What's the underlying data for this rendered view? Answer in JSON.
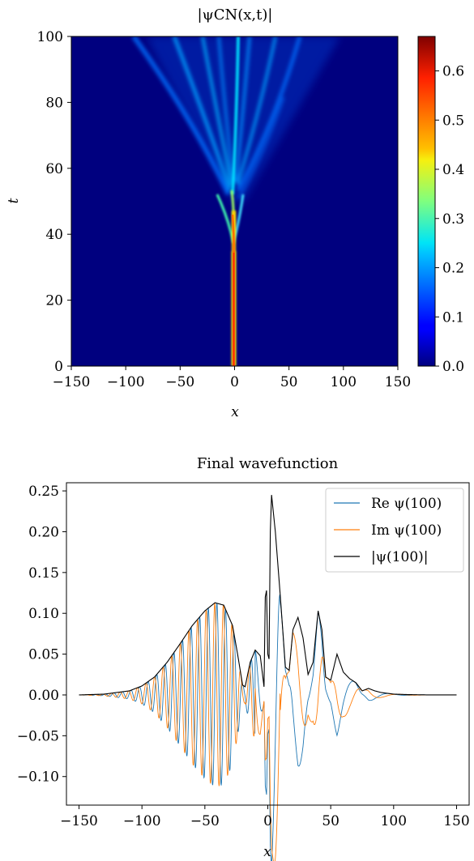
{
  "chart_data": [
    {
      "type": "heatmap",
      "title": "|ψCN(x,t)|",
      "xlabel": "x",
      "ylabel": "t",
      "xlim": [
        -150,
        150
      ],
      "ylim": [
        0,
        100
      ],
      "x_ticks": [
        -150,
        -100,
        -50,
        0,
        50,
        100,
        150
      ],
      "x_tick_labels": [
        "−150",
        "−100",
        "−50",
        "0",
        "50",
        "100",
        "150"
      ],
      "y_ticks": [
        0,
        20,
        40,
        60,
        80,
        100
      ],
      "y_tick_labels": [
        "0",
        "20",
        "40",
        "60",
        "80",
        "100"
      ],
      "colorbar": {
        "range": [
          0,
          0.67
        ],
        "ticks": [
          0.0,
          0.1,
          0.2,
          0.3,
          0.4,
          0.5,
          0.6
        ],
        "tick_labels": [
          "0.0",
          "0.1",
          "0.2",
          "0.3",
          "0.4",
          "0.5",
          "0.6"
        ],
        "colormap": "jet"
      },
      "features": [
        {
          "description_t_range": [
            0,
            40
          ],
          "x": 0,
          "peak_value": 0.67
        },
        {
          "description_t_range": [
            40,
            52
          ],
          "x_drift": [
            0,
            -3
          ],
          "peak_value": 0.5
        },
        {
          "description_t_range": [
            52,
            100
          ],
          "fan_out_to": [
            -60,
            50
          ],
          "peak_value": 0.2
        }
      ]
    },
    {
      "type": "line",
      "title": "Final wavefunction",
      "xlabel": "x",
      "ylabel": "",
      "xlim": [
        -160,
        160
      ],
      "ylim": [
        -0.135,
        0.26
      ],
      "x_ticks": [
        -150,
        -100,
        -50,
        0,
        50,
        100,
        150
      ],
      "x_tick_labels": [
        "−150",
        "−100",
        "−50",
        "0",
        "50",
        "100",
        "150"
      ],
      "y_ticks": [
        -0.1,
        -0.05,
        0.0,
        0.05,
        0.1,
        0.15,
        0.2,
        0.25
      ],
      "y_tick_labels": [
        "−0.10",
        "−0.05",
        "0.00",
        "0.05",
        "0.10",
        "0.15",
        "0.20",
        "0.25"
      ],
      "legend_position": "top-right",
      "series": [
        {
          "name": "Re ψ(100)",
          "color": "#1f77b4"
        },
        {
          "name": "Im ψ(100)",
          "color": "#ff7f0e"
        },
        {
          "name": "|ψ(100)|",
          "color": "#000000"
        }
      ],
      "envelope_x": [
        -150,
        -130,
        -110,
        -100,
        -90,
        -80,
        -70,
        -60,
        -50,
        -42,
        -35,
        -28,
        -24,
        -20,
        -18,
        -14,
        -10,
        -6,
        -3,
        -2,
        -1,
        0,
        1,
        2,
        3,
        6,
        10,
        14,
        17,
        20,
        24,
        28,
        32,
        36,
        40,
        43,
        46,
        50,
        55,
        60,
        65,
        70,
        75,
        80,
        85,
        90,
        95,
        100,
        110,
        120,
        130,
        150
      ],
      "envelope_y": [
        0.0,
        0.001,
        0.005,
        0.011,
        0.022,
        0.04,
        0.062,
        0.085,
        0.103,
        0.113,
        0.11,
        0.085,
        0.05,
        0.012,
        0.01,
        0.04,
        0.055,
        0.048,
        0.01,
        0.12,
        0.128,
        0.05,
        0.044,
        0.2,
        0.245,
        0.2,
        0.12,
        0.034,
        0.03,
        0.08,
        0.095,
        0.07,
        0.025,
        0.04,
        0.103,
        0.08,
        0.022,
        0.018,
        0.05,
        0.028,
        0.02,
        0.015,
        0.005,
        0.008,
        0.005,
        0.003,
        0.002,
        0.001,
        0.0005,
        0.0002,
        0.0,
        0.0
      ]
    }
  ]
}
